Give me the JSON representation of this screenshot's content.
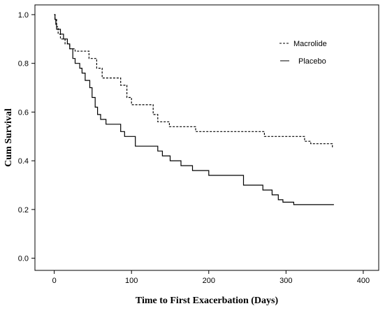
{
  "chart_data": {
    "type": "line",
    "title": "",
    "xlabel": "Time to First Exacerbation (Days)",
    "ylabel": "Cum Survival",
    "xlim": [
      -25,
      420
    ],
    "ylim": [
      -0.05,
      1.04
    ],
    "x_ticks": [
      "0",
      "100",
      "200",
      "300",
      "400"
    ],
    "y_ticks": [
      "0.0",
      "0.2",
      "0.4",
      "0.6",
      "0.8",
      "1.0"
    ],
    "legend_position": "top-right",
    "grid": false,
    "series": [
      {
        "name": "Macrolide",
        "line_style": "dashed",
        "x": [
          0,
          1,
          3,
          5,
          8,
          14,
          20,
          27,
          45,
          55,
          62,
          86,
          94,
          100,
          128,
          134,
          149,
          183,
          272,
          324,
          332,
          360
        ],
        "y": [
          1.0,
          0.98,
          0.95,
          0.92,
          0.9,
          0.88,
          0.86,
          0.85,
          0.82,
          0.78,
          0.74,
          0.71,
          0.66,
          0.63,
          0.59,
          0.56,
          0.54,
          0.52,
          0.5,
          0.48,
          0.47,
          0.45
        ]
      },
      {
        "name": "Placebo",
        "line_style": "solid",
        "x": [
          0,
          1,
          2,
          3,
          8,
          12,
          17,
          20,
          24,
          27,
          33,
          36,
          40,
          46,
          49,
          53,
          56,
          60,
          67,
          86,
          91,
          105,
          134,
          140,
          150,
          164,
          179,
          200,
          245,
          270,
          282,
          290,
          296,
          310,
          362
        ],
        "y": [
          1.0,
          0.98,
          0.96,
          0.94,
          0.92,
          0.9,
          0.88,
          0.86,
          0.82,
          0.8,
          0.78,
          0.76,
          0.73,
          0.7,
          0.66,
          0.62,
          0.59,
          0.57,
          0.55,
          0.52,
          0.5,
          0.46,
          0.44,
          0.42,
          0.4,
          0.38,
          0.36,
          0.34,
          0.3,
          0.28,
          0.26,
          0.24,
          0.23,
          0.22,
          0.22
        ]
      }
    ]
  }
}
